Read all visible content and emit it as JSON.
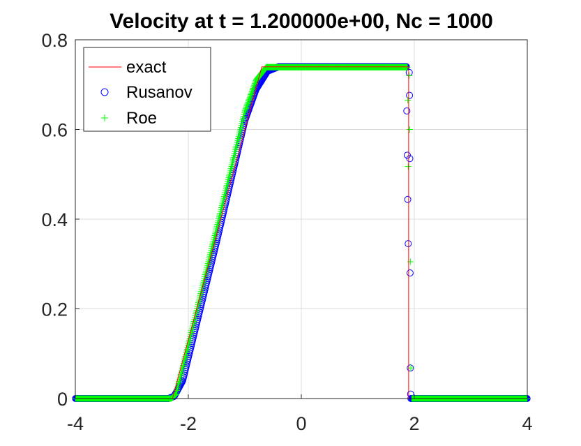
{
  "chart_data": {
    "type": "line",
    "title": "Velocity at t = 1.200000e+00, Nc = 1000",
    "xlabel": "",
    "ylabel": "",
    "xlim": [
      -4,
      4
    ],
    "ylim": [
      0,
      0.8
    ],
    "xticks": [
      "-4",
      "-2",
      "0",
      "2",
      "4"
    ],
    "yticks": [
      "0",
      "0.2",
      "0.4",
      "0.6",
      "0.8"
    ],
    "xtick_values": [
      -4,
      -2,
      0,
      2,
      4
    ],
    "ytick_values": [
      0,
      0.2,
      0.4,
      0.6,
      0.8
    ],
    "grid": true,
    "legend": {
      "placement": "top-left"
    },
    "series": [
      {
        "name": "exact",
        "style": "line",
        "color": "#ff0000",
        "x": [
          -4,
          -2.28,
          -0.7,
          1.9,
          1.9,
          4
        ],
        "y": [
          0,
          0,
          0.7396,
          0.7396,
          0,
          0
        ]
      },
      {
        "name": "Rusanov",
        "style": "circle",
        "color": "#0000ff",
        "profile": {
          "x": [
            -4,
            -2.35,
            -2.25,
            -2.1,
            -1.5,
            -1.0,
            -0.8,
            -0.6,
            -0.4,
            1.86,
            1.92
          ],
          "y": [
            0,
            0,
            0.005,
            0.04,
            0.35,
            0.62,
            0.69,
            0.73,
            0.74,
            0.74,
            0
          ]
        },
        "shock_points": {
          "x": [
            1.91,
            1.915,
            1.92,
            1.925,
            1.93,
            1.935,
            1.94
          ],
          "y": [
            0.727,
            0.676,
            0.535,
            0.28,
            0.068,
            0.01,
            0.0
          ]
        }
      },
      {
        "name": "Roe",
        "style": "plus",
        "color": "#00ff00",
        "profile": {
          "x": [
            -4,
            -2.3,
            -2.22,
            -2.0,
            -1.5,
            -1.0,
            -0.8,
            -0.62,
            1.88,
            1.92
          ],
          "y": [
            0,
            0,
            0.01,
            0.12,
            0.38,
            0.64,
            0.71,
            0.739,
            0.739,
            0
          ]
        },
        "shock_points": {
          "x": [
            1.91,
            1.92,
            1.93,
            1.94
          ],
          "y": [
            0.72,
            0.6,
            0.305,
            0.068
          ]
        }
      }
    ]
  }
}
